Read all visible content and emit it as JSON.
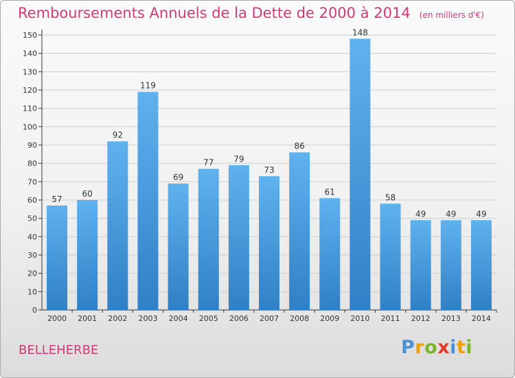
{
  "header": {
    "title": "Remboursements Annuels de la Dette de 2000 à 2014",
    "unit": "(en milliers d'€)"
  },
  "footer": {
    "place": "BELLEHERBE",
    "logo_text": "Proxiti"
  },
  "colors": {
    "title": "#d33a73",
    "bar_top": "#5fb2ee",
    "bar_bottom": "#2f80c6",
    "axis": "#333333",
    "grid": "#cfcfcf"
  },
  "chart_data": {
    "type": "bar",
    "title": "Remboursements Annuels de la Dette de 2000 à 2014",
    "xlabel": "",
    "ylabel": "(en milliers d'€)",
    "ylim": [
      0,
      150
    ],
    "ytick_step": 10,
    "grid": true,
    "categories": [
      "2000",
      "2001",
      "2002",
      "2003",
      "2004",
      "2005",
      "2006",
      "2007",
      "2008",
      "2009",
      "2010",
      "2011",
      "2012",
      "2013",
      "2014"
    ],
    "values": [
      57,
      60,
      92,
      119,
      69,
      77,
      79,
      73,
      86,
      61,
      148,
      58,
      49,
      49,
      49
    ]
  }
}
